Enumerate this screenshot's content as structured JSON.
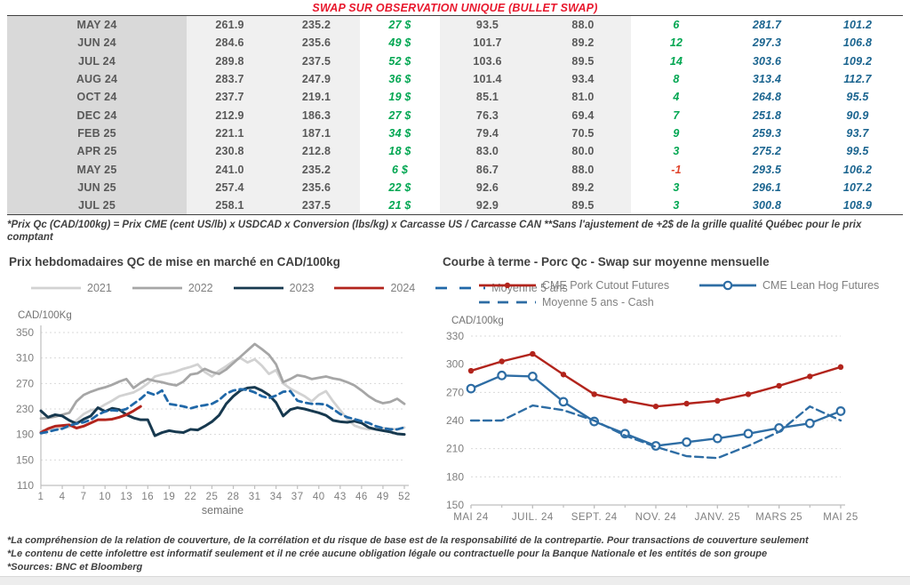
{
  "colors": {
    "accent_red": "#e8182d",
    "positive_green": "#00a651",
    "negative_red": "#e0442c",
    "value_blue": "#1a648f"
  },
  "page": {
    "title": "SWAP SUR OBSERVATION UNIQUE (BULLET SWAP)",
    "table_footnote": "*Prix Qc (CAD/100kg) = Prix CME (cent US/lb) x USDCAD x Conversion (lbs/kg) x Carcasse US / Carcasse CAN **Sans l'ajustement de +2$ de la grille qualité Québec pour le prix comptant",
    "footnotes": [
      "*La compréhension de la relation de couverture, de la corrélation et du risque de base est de la responsabilité de la contrepartie. Pour transactions de couverture seulement",
      "*Le contenu de cette infolettre est informatif seulement et il ne crée aucune obligation légale ou contractuelle pour la Banque Nationale et les entités de son groupe",
      "*Sources: BNC et Bloomberg"
    ]
  },
  "table": {
    "cell_classes": [
      "m",
      "a",
      "a",
      "g",
      "a",
      "a",
      "g",
      "b",
      "b"
    ],
    "rows": [
      [
        "MAY 24",
        "261.9",
        "235.2",
        "27 $",
        "93.5",
        "88.0",
        "6",
        "281.7",
        "101.2"
      ],
      [
        "JUN 24",
        "284.6",
        "235.6",
        "49 $",
        "101.7",
        "89.2",
        "12",
        "297.3",
        "106.8"
      ],
      [
        "JUL 24",
        "289.8",
        "237.5",
        "52 $",
        "103.6",
        "89.5",
        "14",
        "303.6",
        "109.2"
      ],
      [
        "AUG 24",
        "283.7",
        "247.9",
        "36 $",
        "101.4",
        "93.4",
        "8",
        "313.4",
        "112.7"
      ],
      [
        "OCT 24",
        "237.7",
        "219.1",
        "19 $",
        "85.1",
        "81.0",
        "4",
        "264.8",
        "95.5"
      ],
      [
        "DEC 24",
        "212.9",
        "186.3",
        "27 $",
        "76.3",
        "69.4",
        "7",
        "251.8",
        "90.9"
      ],
      [
        "FEB 25",
        "221.1",
        "187.1",
        "34 $",
        "79.4",
        "70.5",
        "9",
        "259.3",
        "93.7"
      ],
      [
        "APR 25",
        "230.8",
        "212.8",
        "18 $",
        "83.0",
        "80.0",
        "3",
        "275.2",
        "99.5"
      ],
      [
        "MAY 25",
        "241.0",
        "235.2",
        "6 $",
        "86.7",
        "88.0",
        "-1",
        "293.5",
        "106.2"
      ],
      [
        "JUN 25",
        "257.4",
        "235.6",
        "22 $",
        "92.6",
        "89.2",
        "3",
        "296.1",
        "107.2"
      ],
      [
        "JUL 25",
        "258.1",
        "237.5",
        "21 $",
        "92.9",
        "89.5",
        "3",
        "300.8",
        "108.9"
      ]
    ]
  },
  "chart_data": [
    {
      "type": "line",
      "title": "Prix hebdomadaires QC de mise en marché en CAD/100kg",
      "axis_unit": "CAD/100Kg",
      "xlabel": "semaine",
      "ylim": [
        110,
        350
      ],
      "yticks": [
        110,
        150,
        190,
        230,
        270,
        310,
        350
      ],
      "x_count": 52,
      "grid": true,
      "legend_position": "top",
      "xticks": [
        [
          0,
          "1"
        ],
        [
          3,
          "4"
        ],
        [
          6,
          "7"
        ],
        [
          9,
          "10"
        ],
        [
          12,
          "13"
        ],
        [
          15,
          "16"
        ],
        [
          18,
          "19"
        ],
        [
          21,
          "22"
        ],
        [
          24,
          "25"
        ],
        [
          27,
          "28"
        ],
        [
          30,
          "31"
        ],
        [
          33,
          "34"
        ],
        [
          36,
          "37"
        ],
        [
          39,
          "40"
        ],
        [
          42,
          "43"
        ],
        [
          45,
          "46"
        ],
        [
          48,
          "49"
        ],
        [
          51,
          "52"
        ]
      ],
      "series": [
        {
          "name": "2021",
          "color": "#d2d2d2",
          "width": 2.8,
          "values": [
            196,
            197,
            198,
            200,
            202,
            212,
            222,
            228,
            230,
            237,
            243,
            250,
            253,
            256,
            262,
            270,
            281,
            284,
            286,
            289,
            293,
            296,
            300,
            288,
            281,
            290,
            297,
            305,
            310,
            303,
            308,
            298,
            285,
            291,
            270,
            262,
            256,
            250,
            242,
            252,
            258,
            242,
            228,
            214,
            204,
            200,
            198,
            199,
            200,
            199,
            198,
            201
          ]
        },
        {
          "name": "2022",
          "color": "#a6a6a6",
          "width": 2.8,
          "values": [
            215,
            216,
            218,
            221,
            224,
            242,
            252,
            257,
            261,
            264,
            268,
            273,
            277,
            263,
            271,
            277,
            274,
            272,
            269,
            267,
            273,
            284,
            286,
            293,
            288,
            285,
            292,
            302,
            312,
            322,
            332,
            324,
            315,
            300,
            272,
            277,
            283,
            281,
            277,
            279,
            281,
            278,
            276,
            272,
            267,
            259,
            250,
            243,
            239,
            241,
            246,
            238
          ]
        },
        {
          "name": "2023",
          "color": "#17394f",
          "width": 3,
          "values": [
            227,
            217,
            221,
            219,
            212,
            207,
            214,
            219,
            232,
            226,
            231,
            229,
            221,
            216,
            213,
            213,
            188,
            193,
            196,
            194,
            193,
            198,
            197,
            203,
            210,
            220,
            238,
            250,
            259,
            263,
            264,
            259,
            252,
            240,
            219,
            229,
            232,
            230,
            227,
            224,
            220,
            212,
            210,
            209,
            211,
            208,
            201,
            198,
            196,
            194,
            191,
            190
          ]
        },
        {
          "name": "2024",
          "color": "#b2241c",
          "width": 3,
          "values": [
            193,
            199,
            203,
            204,
            205,
            200,
            203,
            208,
            213,
            213,
            214,
            217,
            221,
            227,
            234
          ]
        },
        {
          "name": "Moyenne 5 ans",
          "color": "#2068a8",
          "width": 2.8,
          "dash": "7 5",
          "values": [
            192,
            194,
            197,
            199,
            204,
            207,
            209,
            213,
            221,
            226,
            228,
            227,
            230,
            238,
            246,
            256,
            252,
            259,
            238,
            236,
            234,
            231,
            234,
            236,
            238,
            244,
            254,
            259,
            261,
            260,
            256,
            250,
            247,
            251,
            257,
            258,
            243,
            240,
            238,
            238,
            237,
            230,
            222,
            217,
            214,
            211,
            208,
            203,
            200,
            198,
            198,
            201
          ]
        }
      ]
    },
    {
      "type": "line",
      "title": "Courbe à terme - Porc Qc - Swap sur moyenne mensuelle",
      "axis_unit": "CAD/100kg",
      "xlabel": "",
      "ylim": [
        150,
        330
      ],
      "yticks": [
        150,
        180,
        210,
        240,
        270,
        300,
        330
      ],
      "x_count": 13,
      "grid": true,
      "legend_position": "top",
      "xticks": [
        [
          0,
          "MAI 24"
        ],
        [
          2,
          "JUIL. 24"
        ],
        [
          4,
          "SEPT. 24"
        ],
        [
          6,
          "NOV. 24"
        ],
        [
          8,
          "JANV. 25"
        ],
        [
          10,
          "MARS 25"
        ],
        [
          12,
          "MAI 25"
        ]
      ],
      "series": [
        {
          "name": "CME Pork Cutout Futures",
          "color": "#b2241c",
          "width": 2.4,
          "marker": "dot",
          "values": [
            293,
            303,
            311,
            289,
            268,
            261,
            255,
            258,
            261,
            268,
            277,
            287,
            297
          ]
        },
        {
          "name": "CME Lean Hog Futures",
          "color": "#2e6da4",
          "width": 2.4,
          "marker": "circle",
          "values": [
            274,
            288,
            287,
            260,
            239,
            226,
            213,
            217,
            221,
            226,
            232,
            237,
            250
          ]
        },
        {
          "name": "Moyenne 5 ans - Cash",
          "color": "#2e6da4",
          "width": 2.4,
          "dash": "9 5",
          "values": [
            240,
            240,
            256,
            251,
            240,
            224,
            212,
            202,
            200,
            213,
            228,
            255,
            240
          ]
        }
      ]
    }
  ]
}
